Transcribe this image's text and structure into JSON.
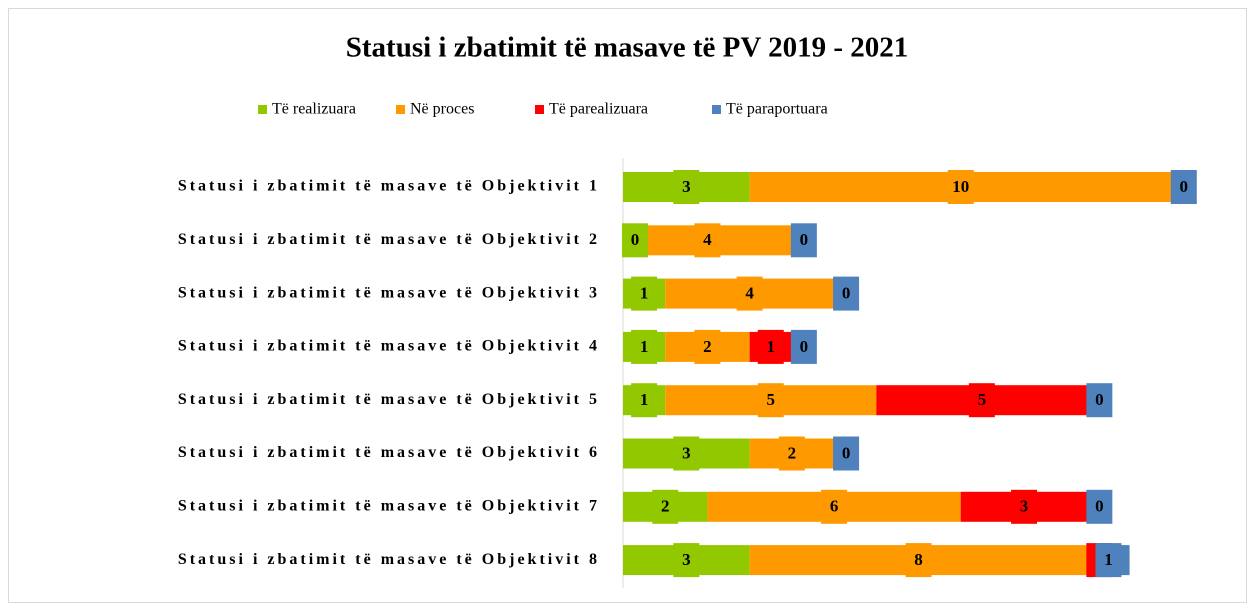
{
  "chart_data": {
    "type": "stacked-barh",
    "title": "Statusi i zbatimit të masave të PV 2019 - 2021",
    "categories": [
      "Statusi i zbatimit të masave të Objektivit 1",
      "Statusi i zbatimit të masave të Objektivit 2",
      "Statusi i zbatimit të masave të Objektivit 3",
      "Statusi i zbatimit të masave të Objektivit 4",
      "Statusi i zbatimit të masave të Objektivit 5",
      "Statusi i zbatimit të masave të Objektivit 6",
      "Statusi i zbatimit të masave të Objektivit 7",
      "Statusi i zbatimit të masave të Objektivit 8"
    ],
    "series": [
      {
        "name": "Të realizuara",
        "color": "#92c800",
        "values": [
          3,
          0,
          1,
          1,
          1,
          3,
          2,
          3
        ]
      },
      {
        "name": "Në proces",
        "color": "#ff9900",
        "values": [
          10,
          4,
          4,
          2,
          5,
          2,
          6,
          8
        ]
      },
      {
        "name": "Të parealizuara",
        "color": "#ff0000",
        "values": [
          null,
          null,
          null,
          1,
          5,
          null,
          3,
          0
        ]
      },
      {
        "name": "Të paraportuara",
        "color": "#4f81bd",
        "values": [
          0,
          0,
          0,
          0,
          0,
          0,
          0,
          1
        ]
      }
    ],
    "xlim": [
      0,
      14
    ],
    "legend": "top"
  }
}
